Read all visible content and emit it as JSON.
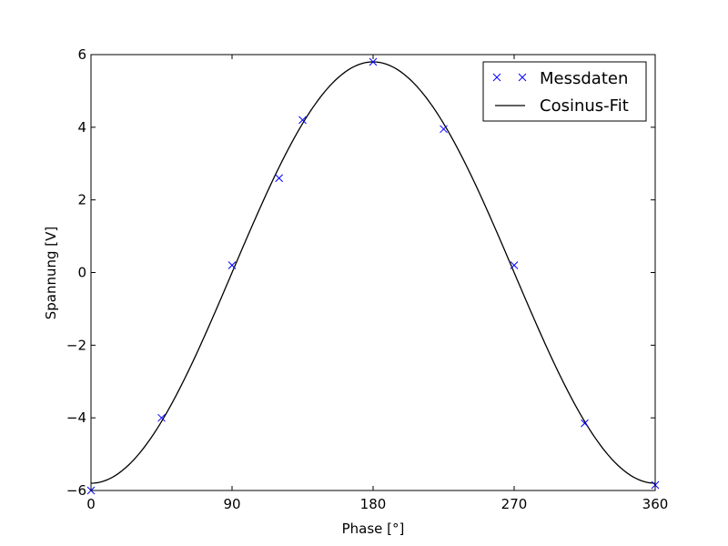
{
  "chart_data": {
    "type": "line",
    "xlabel": "Phase [°]",
    "ylabel": "Spannung [V]",
    "xlim": [
      0,
      360
    ],
    "ylim": [
      -6,
      6
    ],
    "x_ticks": [
      0,
      90,
      180,
      270,
      360
    ],
    "y_ticks": [
      -6,
      -4,
      -2,
      0,
      2,
      4,
      6
    ],
    "x_tick_labels": [
      "0",
      "90",
      "180",
      "270",
      "360"
    ],
    "y_tick_labels": [
      "−6",
      "−4",
      "−2",
      "0",
      "2",
      "4",
      "6"
    ],
    "grid": false,
    "legend_position": "top-right",
    "series": [
      {
        "name": "Messdaten",
        "kind": "scatter",
        "marker": "x",
        "color": "#0000ff",
        "x": [
          0,
          45,
          90,
          120,
          135,
          180,
          225,
          270,
          315,
          360
        ],
        "y": [
          -6.0,
          -4.0,
          0.2,
          2.6,
          4.2,
          5.8,
          3.95,
          0.2,
          -4.15,
          -5.85
        ]
      },
      {
        "name": "Cosinus-Fit",
        "kind": "line",
        "color": "#000000",
        "function": "A*cos(x - phi) + c",
        "amplitude": 5.8,
        "phase_deg": 180,
        "offset": 0
      }
    ]
  }
}
